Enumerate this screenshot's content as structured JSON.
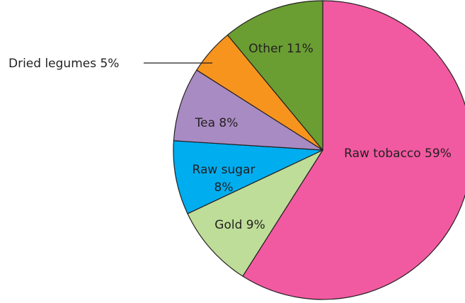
{
  "chart_data": {
    "type": "pie",
    "title": "",
    "slices": [
      {
        "name": "Raw tobacco",
        "value": 59,
        "label": "Raw tobacco 59%",
        "color": "#f15aa1"
      },
      {
        "name": "Gold",
        "value": 9,
        "label": "Gold 9%",
        "color": "#bedd98"
      },
      {
        "name": "Raw sugar",
        "value": 8,
        "label_lines": [
          "Raw sugar",
          "8%"
        ],
        "color": "#00adef"
      },
      {
        "name": "Tea",
        "value": 8,
        "label": "Tea 8%",
        "color": "#a88bc3"
      },
      {
        "name": "Dried legumes",
        "value": 5,
        "label": "Dried legumes 5%",
        "color": "#f7941d"
      },
      {
        "name": "Other",
        "value": 11,
        "label": "Other 11%",
        "color": "#6a9e33"
      }
    ]
  }
}
